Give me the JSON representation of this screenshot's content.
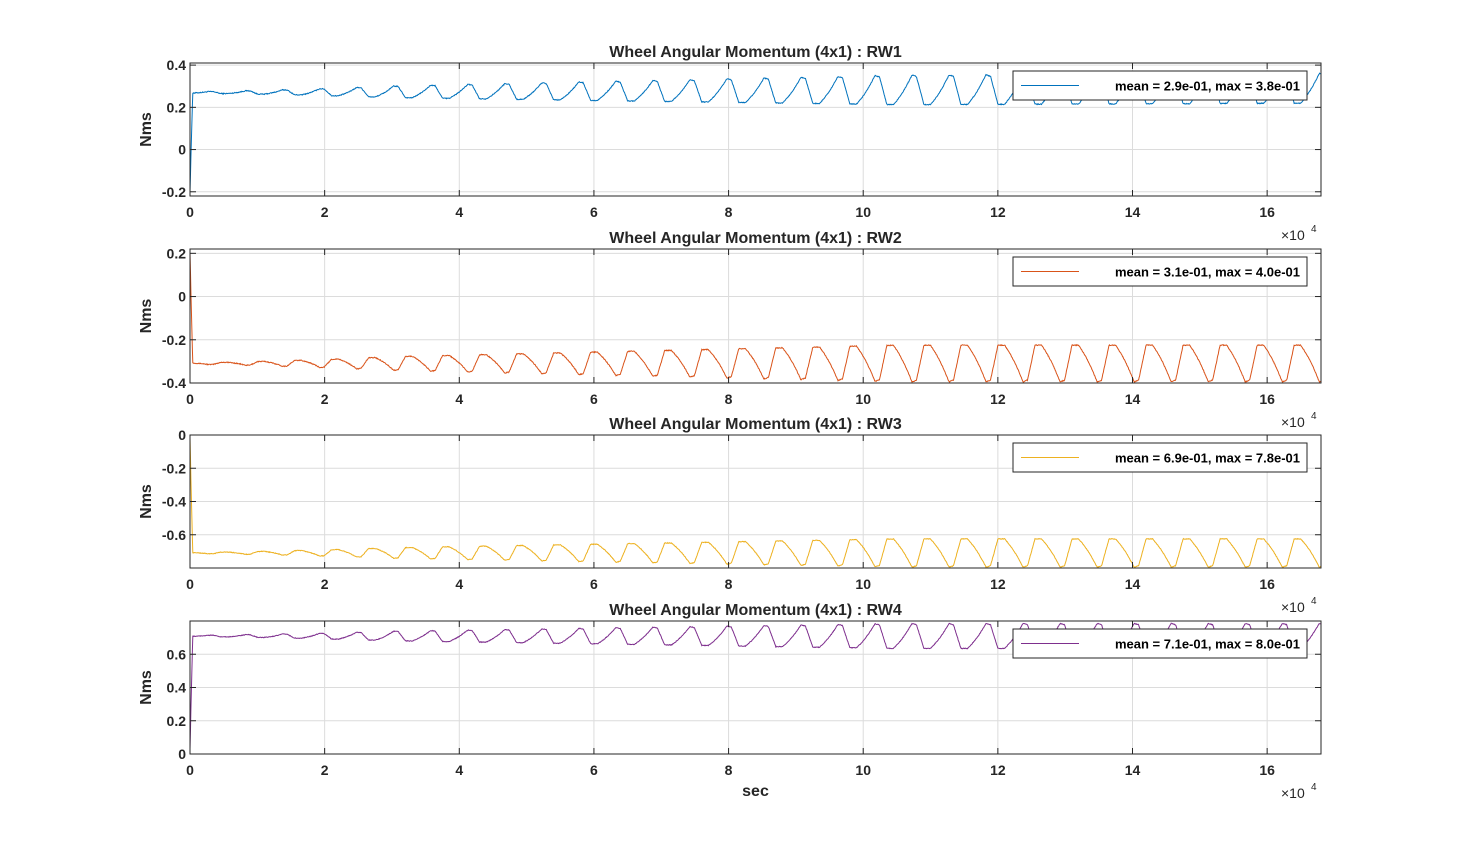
{
  "chart_data": [
    {
      "type": "line",
      "title": "Wheel Angular Momentum (4x1) : RW1",
      "ylabel": "Nms",
      "xlabel": "",
      "x_multiplier_base": "×10",
      "x_multiplier_exp": "4",
      "xlim": [
        0,
        168000
      ],
      "ylim": [
        -0.22,
        0.41
      ],
      "xticks": [
        0,
        20000,
        40000,
        60000,
        80000,
        100000,
        120000,
        140000,
        160000
      ],
      "xtick_labels": [
        "0",
        "2",
        "4",
        "6",
        "8",
        "10",
        "12",
        "14",
        "16"
      ],
      "yticks": [
        -0.2,
        0,
        0.2,
        0.4
      ],
      "ytick_labels": [
        "-0.2",
        "0",
        "0.2",
        "0.4"
      ],
      "grid": true,
      "legend": "top-right",
      "series": [
        {
          "name": "mean = 2.9e-01, max = 3.8e-01",
          "color": "#0072BD",
          "generator": {
            "start": -0.2,
            "base_start": 0.27,
            "base_end": 0.29,
            "amp_start": 0.02,
            "amp_end": 0.14,
            "period": 5500,
            "sign": 1
          }
        }
      ]
    },
    {
      "type": "line",
      "title": "Wheel Angular Momentum (4x1) : RW2",
      "ylabel": "Nms",
      "xlabel": "",
      "x_multiplier_base": "×10",
      "x_multiplier_exp": "4",
      "xlim": [
        0,
        168000
      ],
      "ylim": [
        -0.4,
        0.22
      ],
      "xticks": [
        0,
        20000,
        40000,
        60000,
        80000,
        100000,
        120000,
        140000,
        160000
      ],
      "xtick_labels": [
        "0",
        "2",
        "4",
        "6",
        "8",
        "10",
        "12",
        "14",
        "16"
      ],
      "yticks": [
        -0.4,
        -0.2,
        0,
        0.2
      ],
      "ytick_labels": [
        "-0.4",
        "-0.2",
        "0",
        "0.2"
      ],
      "grid": true,
      "legend": "top-right",
      "series": [
        {
          "name": "mean = 3.1e-01, max = 4.0e-01",
          "color": "#D95319",
          "generator": {
            "start": 0.2,
            "base_start": -0.31,
            "base_end": -0.31,
            "amp_start": 0.02,
            "amp_end": 0.17,
            "period": 5500,
            "sign": -1
          }
        }
      ]
    },
    {
      "type": "line",
      "title": "Wheel Angular Momentum (4x1) : RW3",
      "ylabel": "Nms",
      "xlabel": "",
      "x_multiplier_base": "×10",
      "x_multiplier_exp": "4",
      "xlim": [
        0,
        168000
      ],
      "ylim": [
        -0.8,
        0
      ],
      "xticks": [
        0,
        20000,
        40000,
        60000,
        80000,
        100000,
        120000,
        140000,
        160000
      ],
      "xtick_labels": [
        "0",
        "2",
        "4",
        "6",
        "8",
        "10",
        "12",
        "14",
        "16"
      ],
      "yticks": [
        -0.6,
        -0.4,
        -0.2,
        0
      ],
      "ytick_labels": [
        "-0.6",
        "-0.4",
        "-0.2",
        "0"
      ],
      "grid": true,
      "legend": "top-right",
      "series": [
        {
          "name": "mean = 6.9e-01, max = 7.8e-01",
          "color": "#EDB120",
          "generator": {
            "start": -0.02,
            "base_start": -0.71,
            "base_end": -0.71,
            "amp_start": 0.02,
            "amp_end": 0.17,
            "period": 5500,
            "sign": -1
          }
        }
      ]
    },
    {
      "type": "line",
      "title": "Wheel Angular Momentum (4x1) : RW4",
      "ylabel": "Nms",
      "xlabel": "sec",
      "x_multiplier_base": "×10",
      "x_multiplier_exp": "4",
      "xlim": [
        0,
        168000
      ],
      "ylim": [
        0,
        0.8
      ],
      "xticks": [
        0,
        20000,
        40000,
        60000,
        80000,
        100000,
        120000,
        140000,
        160000
      ],
      "xtick_labels": [
        "0",
        "2",
        "4",
        "6",
        "8",
        "10",
        "12",
        "14",
        "16"
      ],
      "yticks": [
        0,
        0.2,
        0.4,
        0.6
      ],
      "ytick_labels": [
        "0",
        "0.2",
        "0.4",
        "0.6"
      ],
      "grid": true,
      "legend": "top-right",
      "series": [
        {
          "name": "mean = 7.1e-01, max = 8.0e-01",
          "color": "#7E2F8E",
          "generator": {
            "start": 0.03,
            "base_start": 0.71,
            "base_end": 0.71,
            "amp_start": 0.02,
            "amp_end": 0.15,
            "period": 5500,
            "sign": 1
          }
        }
      ]
    }
  ]
}
